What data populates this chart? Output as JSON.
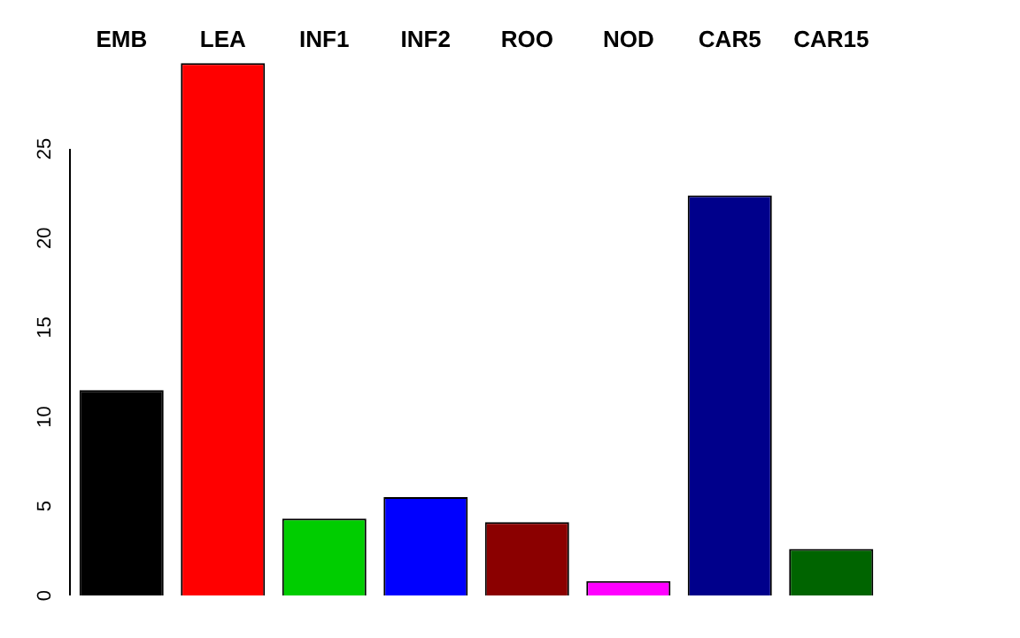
{
  "chart_data": {
    "type": "bar",
    "categories": [
      "EMB",
      "LEA",
      "INF1",
      "INF2",
      "ROO",
      "NOD",
      "CAR5",
      "CAR15"
    ],
    "values": [
      11.5,
      29.8,
      4.3,
      5.5,
      4.1,
      0.8,
      22.4,
      2.6
    ],
    "colors": [
      "#000000",
      "#ff0000",
      "#00cd00",
      "#0000ff",
      "#8b0000",
      "#ff00ff",
      "#00008b",
      "#006400"
    ],
    "ylim": [
      0,
      30
    ],
    "yticks": [
      0,
      5,
      10,
      15,
      20,
      25
    ],
    "grid": false
  }
}
